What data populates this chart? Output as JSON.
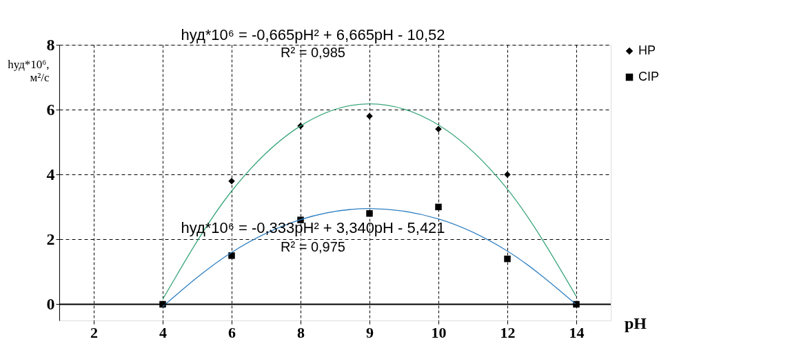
{
  "chart_data": {
    "type": "scatter",
    "categories": [
      "2",
      "4",
      "6",
      "8",
      "9",
      "10",
      "12",
      "14"
    ],
    "series": [
      {
        "name": "HP",
        "marker": "diamond",
        "color": "#000000",
        "values": [
          null,
          null,
          3.8,
          5.5,
          5.8,
          5.4,
          4.0,
          null
        ]
      },
      {
        "name": "CIP",
        "marker": "square",
        "color": "#000000",
        "values": [
          null,
          0,
          1.5,
          2.6,
          2.8,
          3.0,
          1.4,
          0
        ]
      },
      {
        "type": "line",
        "color": "#3aa57a",
        "values": [
          null,
          0.15,
          3.49,
          5.5,
          6.18,
          5.53,
          3.55,
          0.24
        ]
      },
      {
        "type": "line",
        "color": "#2f7fc1",
        "values": [
          null,
          -0.07,
          1.6,
          2.61,
          2.95,
          2.63,
          1.64,
          -0.01
        ]
      }
    ],
    "xlabel": "pH",
    "ylabel": "hуд*10⁶, м²/с",
    "ylim": [
      -0.5,
      8
    ],
    "yticks": [
      0,
      2,
      4,
      6,
      8
    ],
    "ref_lines": [
      {
        "axis": "y",
        "value": 0,
        "color": "#000000"
      }
    ],
    "grid": true,
    "legend": "top right",
    "annotations": [
      "hуд*10⁶ = -0,665pH² + 6,665pH - 10,52",
      "R² = 0,985",
      "hуд*10⁶ = -0,333pH² + 3,340pH - 5,421",
      "R² = 0,975"
    ]
  }
}
